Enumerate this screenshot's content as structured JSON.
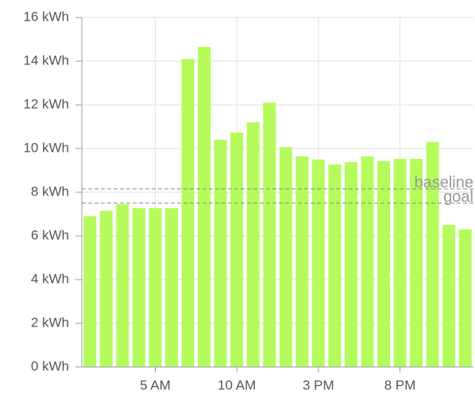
{
  "chart_data": {
    "type": "bar",
    "categories": [
      null,
      null,
      null,
      null,
      "5 AM",
      null,
      null,
      null,
      null,
      "10 AM",
      null,
      null,
      null,
      null,
      "3 PM",
      null,
      null,
      null,
      null,
      "8 PM",
      null,
      null,
      null,
      null
    ],
    "values": [
      6.9,
      7.15,
      7.45,
      7.27,
      7.27,
      7.27,
      14.1,
      14.65,
      10.4,
      10.73,
      11.2,
      12.1,
      10.07,
      9.64,
      9.5,
      9.27,
      9.38,
      9.64,
      9.42,
      9.53,
      9.53,
      10.3,
      6.5,
      6.3
    ],
    "color": "#b5fb5c",
    "ylim": [
      0,
      16
    ],
    "yticks": [
      {
        "value": 0,
        "label": "0 kWh"
      },
      {
        "value": 2,
        "label": "2 kWh"
      },
      {
        "value": 4,
        "label": "4 kWh"
      },
      {
        "value": 6,
        "label": "6 kWh"
      },
      {
        "value": 8,
        "label": "8 kWh"
      },
      {
        "value": 10,
        "label": "10 kWh"
      },
      {
        "value": 12,
        "label": "12 kWh"
      },
      {
        "value": 14,
        "label": "14 kWh"
      },
      {
        "value": 16,
        "label": "16 kWh"
      }
    ],
    "grid": true,
    "reference_lines": [
      {
        "label": "baseline",
        "value": 8.15
      },
      {
        "label": "goal",
        "value": 7.5
      }
    ]
  }
}
